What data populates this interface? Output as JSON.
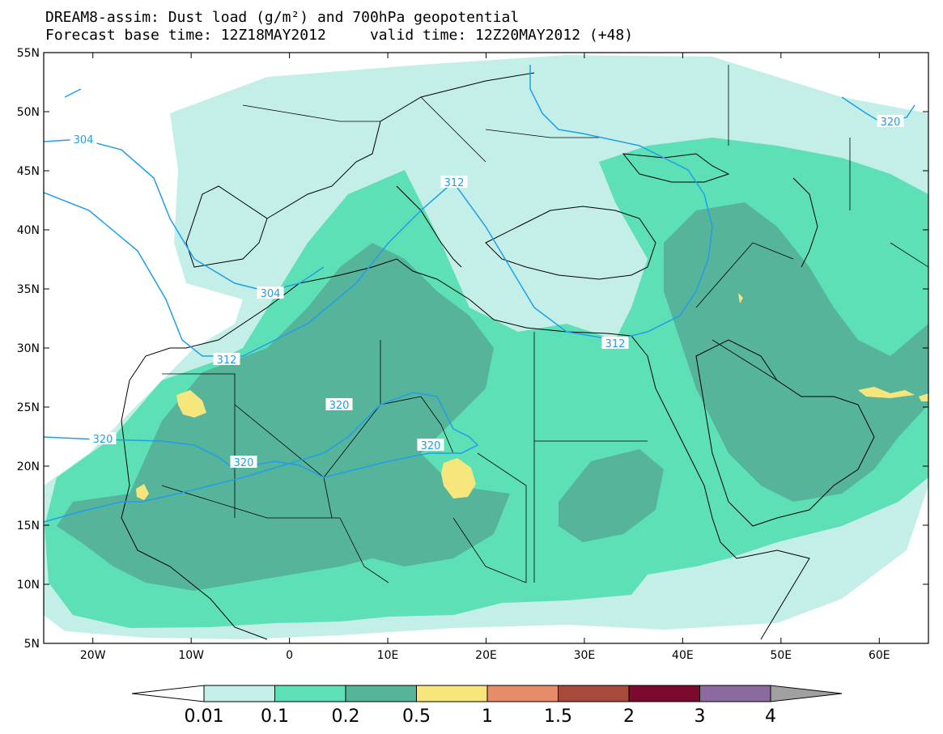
{
  "title": {
    "line1": "DREAM8-assim: Dust load (g/m²) and 700hPa geopotential",
    "line2": "Forecast base time: 12Z18MAY2012     valid time: 12Z20MAY2012 (+48)"
  },
  "map": {
    "lat_range": [
      5,
      55
    ],
    "lon_range": [
      -25,
      65
    ],
    "lat_ticks": [
      "55N",
      "50N",
      "45N",
      "40N",
      "35N",
      "30N",
      "25N",
      "20N",
      "15N",
      "10N",
      "5N"
    ],
    "lon_ticks": [
      "20W",
      "10W",
      "0",
      "10E",
      "20E",
      "30E",
      "40E",
      "50E",
      "60E"
    ],
    "contour_labels": [
      "304",
      "304",
      "312",
      "312",
      "312",
      "320",
      "320",
      "320",
      "320",
      "320"
    ]
  },
  "legend": {
    "labels": [
      "0.01",
      "0.1",
      "0.2",
      "0.5",
      "1",
      "1.5",
      "2",
      "3",
      "4"
    ],
    "colors": [
      "#c4efe8",
      "#5de0b6",
      "#56b49a",
      "#f6e67c",
      "#e68c68",
      "#a74a3a",
      "#7a0b2d",
      "#8c6aa0"
    ],
    "under_color": "#ffffff",
    "over_color": "#a0a0a0"
  }
}
